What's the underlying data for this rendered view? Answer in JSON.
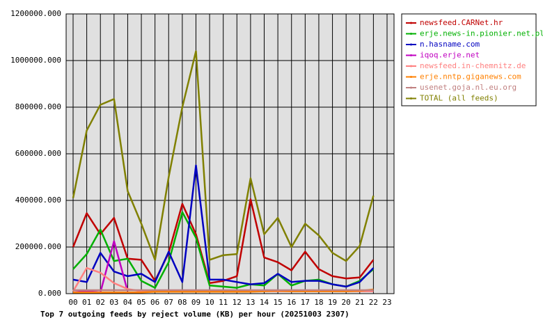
{
  "chart_data": {
    "type": "line",
    "title": "Top 7 outgoing feeds by reject volume (KB) per hour (20251003 2307)",
    "categories": [
      "00",
      "01",
      "02",
      "03",
      "04",
      "05",
      "06",
      "07",
      "08",
      "09",
      "10",
      "11",
      "12",
      "13",
      "14",
      "15",
      "16",
      "17",
      "18",
      "19",
      "20",
      "21",
      "22",
      "23"
    ],
    "ylim": [
      0,
      1200000
    ],
    "yticks": [
      {
        "value": 0,
        "label": "0.000"
      },
      {
        "value": 200000,
        "label": "200000.000"
      },
      {
        "value": 400000,
        "label": "400000.000"
      },
      {
        "value": 600000,
        "label": "600000.000"
      },
      {
        "value": 800000,
        "label": "800000.000"
      },
      {
        "value": 1000000,
        "label": "1000000.000"
      },
      {
        "value": 1200000,
        "label": "1200000.000"
      }
    ],
    "grid": true,
    "legend": "right",
    "series": [
      {
        "name": "newsfeed.CARNet.hr",
        "color": "#c00000",
        "values": [
          200000,
          345000,
          255000,
          325000,
          150000,
          145000,
          55000,
          175000,
          385000,
          255000,
          45000,
          55000,
          75000,
          405000,
          155000,
          135000,
          100000,
          180000,
          105000,
          75000,
          65000,
          70000,
          145000,
          null
        ]
      },
      {
        "name": "erje.news-in.pionier.net.pl",
        "color": "#00b000",
        "values": [
          105000,
          170000,
          275000,
          140000,
          150000,
          55000,
          25000,
          135000,
          350000,
          240000,
          35000,
          30000,
          25000,
          40000,
          35000,
          85000,
          35000,
          55000,
          60000,
          40000,
          30000,
          55000,
          105000,
          null
        ]
      },
      {
        "name": "n.hasname.com",
        "color": "#0000c0",
        "values": [
          60000,
          50000,
          175000,
          95000,
          75000,
          85000,
          50000,
          180000,
          50000,
          550000,
          60000,
          60000,
          50000,
          40000,
          45000,
          85000,
          50000,
          55000,
          55000,
          40000,
          30000,
          50000,
          110000,
          null
        ]
      },
      {
        "name": "iqoq.erje.net",
        "color": "#c000c0",
        "values": [
          15000,
          10000,
          5000,
          225000,
          10000,
          null,
          null,
          null,
          null,
          null,
          null,
          null,
          null,
          null,
          null,
          null,
          null,
          null,
          null,
          null,
          null,
          null,
          null,
          null
        ]
      },
      {
        "name": "newsfeed.in-chemnitz.de",
        "color": "#ff8080",
        "values": [
          10000,
          110000,
          90000,
          45000,
          20000,
          10000,
          10000,
          10000,
          10000,
          10000,
          10000,
          10000,
          10000,
          10000,
          10000,
          10000,
          10000,
          10000,
          10000,
          10000,
          10000,
          10000,
          10000,
          null
        ]
      },
      {
        "name": "erje.nntp.giganews.com",
        "color": "#ff8000",
        "values": [
          5000,
          5000,
          5000,
          5000,
          5000,
          5000,
          8000,
          8000,
          8000,
          8000,
          8000,
          8000,
          8000,
          8000,
          10000,
          12000,
          10000,
          10000,
          10000,
          10000,
          10000,
          12000,
          18000,
          null
        ]
      },
      {
        "name": "usenet.goja.nl.eu.org",
        "color": "#c08080",
        "values": [
          15000,
          15000,
          15000,
          15000,
          15000,
          15000,
          15000,
          15000,
          15000,
          15000,
          15000,
          15000,
          15000,
          15000,
          15000,
          15000,
          15000,
          15000,
          15000,
          15000,
          15000,
          15000,
          15000,
          null
        ]
      },
      {
        "name": "TOTAL (all feeds)",
        "color": "#808000",
        "values": [
          410000,
          700000,
          810000,
          835000,
          440000,
          300000,
          145000,
          500000,
          800000,
          1040000,
          145000,
          165000,
          170000,
          495000,
          255000,
          325000,
          200000,
          300000,
          250000,
          175000,
          140000,
          205000,
          420000,
          null
        ]
      }
    ]
  }
}
